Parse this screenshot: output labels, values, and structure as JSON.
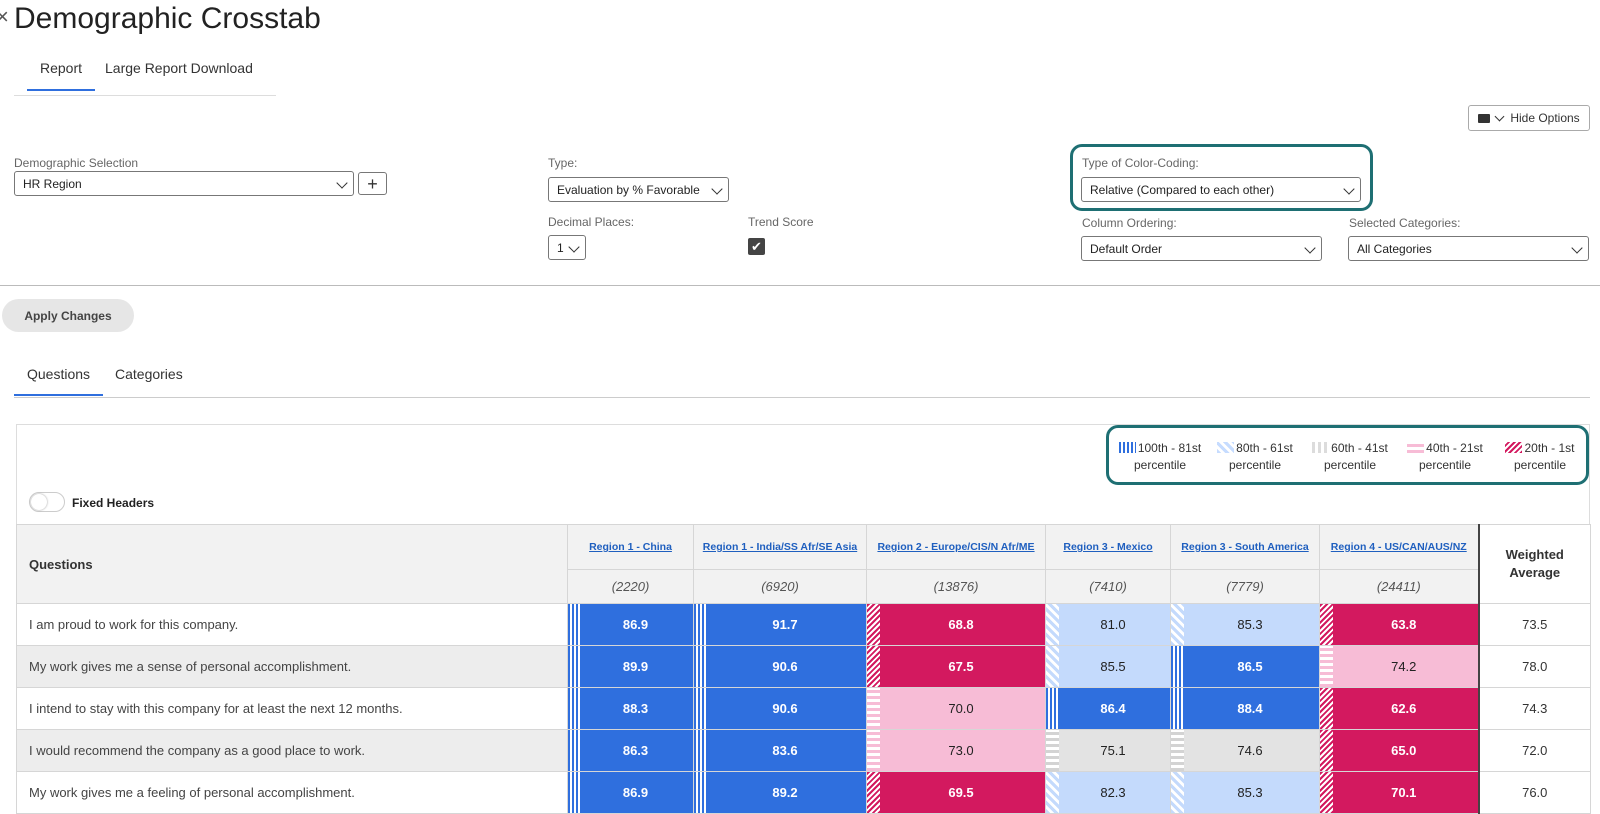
{
  "page": {
    "title": "Demographic Crosstab",
    "close_glyph": "×"
  },
  "top_tabs": [
    {
      "label": "Report",
      "active": true
    },
    {
      "label": "Large Report Download",
      "active": false
    }
  ],
  "hide_options_label": "Hide Options",
  "demographic": {
    "label": "Demographic Selection",
    "value": "HR Region",
    "add_label": "+"
  },
  "type": {
    "label": "Type:",
    "value": "Evaluation by % Favorable"
  },
  "decimal": {
    "label": "Decimal Places:",
    "value": "1"
  },
  "trend": {
    "label": "Trend Score",
    "checked": true,
    "check_glyph": "✔"
  },
  "color_coding": {
    "label": "Type of Color-Coding:",
    "value": "Relative (Compared to each other)"
  },
  "column_ordering": {
    "label": "Column Ordering:",
    "value": "Default Order"
  },
  "selected_categories": {
    "label": "Selected Categories:",
    "value": "All Categories"
  },
  "apply_label": "Apply Changes",
  "content_tabs": [
    {
      "label": "Questions",
      "active": true
    },
    {
      "label": "Categories",
      "active": false
    }
  ],
  "legend": [
    {
      "range": "100th - 81st",
      "unit": "percentile",
      "color": "#2f6fde"
    },
    {
      "range": "80th - 61st",
      "unit": "percentile",
      "color": "#c4dafc"
    },
    {
      "range": "60th - 41st",
      "unit": "percentile",
      "color": "#e3e3e3"
    },
    {
      "range": "40th - 21st",
      "unit": "percentile",
      "color": "#f7bcd6"
    },
    {
      "range": "20th - 1st",
      "unit": "percentile",
      "color": "#d3195f"
    }
  ],
  "fixed_headers_label": "Fixed Headers",
  "table": {
    "questions_header": "Questions",
    "weighted_header": "Weighted Average",
    "regions": [
      {
        "name": "Region 1 - China",
        "n": "(2220)"
      },
      {
        "name": "Region 1 - India/SS Afr/SE Asia",
        "n": "(6920)"
      },
      {
        "name": "Region 2 - Europe/CIS/N Afr/ME",
        "n": "(13876)"
      },
      {
        "name": "Region 3 - Mexico",
        "n": "(7410)"
      },
      {
        "name": "Region 3 - South America",
        "n": "(7779)"
      },
      {
        "name": "Region 4 - US/CAN/AUS/NZ",
        "n": "(24411)"
      }
    ],
    "rows": [
      {
        "question": "I am proud to work for this company.",
        "values": [
          "86.9",
          "91.7",
          "68.8",
          "81.0",
          "85.3",
          "63.8"
        ],
        "bands": [
          1,
          1,
          5,
          2,
          2,
          5
        ],
        "avg": "73.5"
      },
      {
        "question": "My work gives me a sense of personal accomplishment.",
        "values": [
          "89.9",
          "90.6",
          "67.5",
          "85.5",
          "86.5",
          "74.2"
        ],
        "bands": [
          1,
          1,
          5,
          2,
          1,
          4
        ],
        "avg": "78.0"
      },
      {
        "question": "I intend to stay with this company for at least the next 12 months.",
        "values": [
          "88.3",
          "90.6",
          "70.0",
          "86.4",
          "88.4",
          "62.6"
        ],
        "bands": [
          1,
          1,
          4,
          1,
          1,
          5
        ],
        "avg": "74.3"
      },
      {
        "question": "I would recommend the company as a good place to work.",
        "values": [
          "86.3",
          "83.6",
          "73.0",
          "75.1",
          "74.6",
          "65.0"
        ],
        "bands": [
          1,
          1,
          4,
          3,
          3,
          5
        ],
        "avg": "72.0"
      },
      {
        "question": "My work gives me a feeling of personal accomplishment.",
        "values": [
          "86.9",
          "89.2",
          "69.5",
          "82.3",
          "85.3",
          "70.1"
        ],
        "bands": [
          1,
          1,
          5,
          2,
          2,
          5
        ],
        "avg": "76.0"
      }
    ]
  }
}
